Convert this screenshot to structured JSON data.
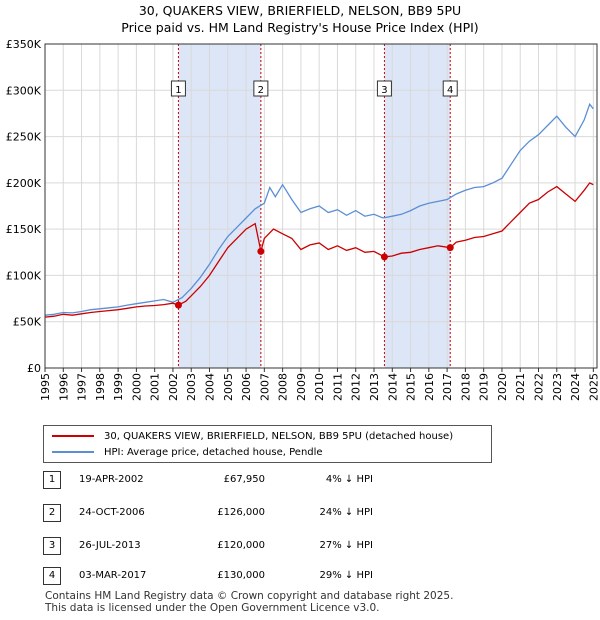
{
  "title_line1": "30, QUAKERS VIEW, BRIERFIELD, NELSON, BB9 5PU",
  "title_line2": "Price paid vs. HM Land Registry's House Price Index (HPI)",
  "colors": {
    "property": "#cc0000",
    "hpi": "#5b8fd4",
    "shade": "#dde6f7",
    "marker_line": "#cc0000",
    "grid": "#d9d9d9"
  },
  "chart_data": {
    "type": "line",
    "xlim": [
      1995,
      2025.2
    ],
    "ylim": [
      0,
      350000
    ],
    "y_ticks": [
      {
        "value": 0,
        "label": "£0"
      },
      {
        "value": 50000,
        "label": "£50K"
      },
      {
        "value": 100000,
        "label": "£100K"
      },
      {
        "value": 150000,
        "label": "£150K"
      },
      {
        "value": 200000,
        "label": "£200K"
      },
      {
        "value": 250000,
        "label": "£250K"
      },
      {
        "value": 300000,
        "label": "£300K"
      },
      {
        "value": 350000,
        "label": "£350K"
      }
    ],
    "x_ticks": [
      "1995",
      "1996",
      "1997",
      "1998",
      "1999",
      "2000",
      "2001",
      "2002",
      "2003",
      "2004",
      "2005",
      "2006",
      "2007",
      "2008",
      "2009",
      "2010",
      "2011",
      "2012",
      "2013",
      "2014",
      "2015",
      "2016",
      "2017",
      "2018",
      "2019",
      "2020",
      "2021",
      "2022",
      "2023",
      "2024",
      "2025"
    ],
    "shaded_ranges": [
      [
        2002.3,
        2006.81
      ],
      [
        2013.57,
        2017.17
      ]
    ],
    "series": [
      {
        "name": "30, QUAKERS VIEW, BRIERFIELD, NELSON, BB9 5PU (detached house)",
        "color": "#cc0000",
        "points": [
          [
            1995,
            55000
          ],
          [
            1995.5,
            56000
          ],
          [
            1996,
            58000
          ],
          [
            1996.5,
            57000
          ],
          [
            1997,
            58500
          ],
          [
            1997.5,
            60000
          ],
          [
            1998,
            61000
          ],
          [
            1998.5,
            62000
          ],
          [
            1999,
            63000
          ],
          [
            1999.5,
            64500
          ],
          [
            2000,
            66000
          ],
          [
            2000.5,
            67000
          ],
          [
            2001,
            67500
          ],
          [
            2001.5,
            68500
          ],
          [
            2002,
            70000
          ],
          [
            2002.3,
            67950
          ],
          [
            2002.7,
            72000
          ],
          [
            2003,
            78000
          ],
          [
            2003.5,
            88000
          ],
          [
            2004,
            100000
          ],
          [
            2004.5,
            115000
          ],
          [
            2005,
            130000
          ],
          [
            2005.5,
            140000
          ],
          [
            2006,
            150000
          ],
          [
            2006.5,
            156000
          ],
          [
            2006.81,
            126000
          ],
          [
            2007,
            140000
          ],
          [
            2007.5,
            150000
          ],
          [
            2008,
            145000
          ],
          [
            2008.5,
            140000
          ],
          [
            2009,
            128000
          ],
          [
            2009.5,
            133000
          ],
          [
            2010,
            135000
          ],
          [
            2010.5,
            128000
          ],
          [
            2011,
            132000
          ],
          [
            2011.5,
            127000
          ],
          [
            2012,
            130000
          ],
          [
            2012.5,
            125000
          ],
          [
            2013,
            126000
          ],
          [
            2013.57,
            120000
          ],
          [
            2014,
            121000
          ],
          [
            2014.5,
            124000
          ],
          [
            2015,
            125000
          ],
          [
            2015.5,
            128000
          ],
          [
            2016,
            130000
          ],
          [
            2016.5,
            132000
          ],
          [
            2017.17,
            130000
          ],
          [
            2017.5,
            136000
          ],
          [
            2018,
            138000
          ],
          [
            2018.5,
            141000
          ],
          [
            2019,
            142000
          ],
          [
            2019.5,
            145000
          ],
          [
            2020,
            148000
          ],
          [
            2020.5,
            158000
          ],
          [
            2021,
            168000
          ],
          [
            2021.5,
            178000
          ],
          [
            2022,
            182000
          ],
          [
            2022.5,
            190000
          ],
          [
            2023,
            196000
          ],
          [
            2023.5,
            188000
          ],
          [
            2024,
            180000
          ],
          [
            2024.5,
            192000
          ],
          [
            2024.8,
            200000
          ],
          [
            2025,
            198000
          ]
        ]
      },
      {
        "name": "HPI: Average price, detached house, Pendle",
        "color": "#5b8fd4",
        "points": [
          [
            1995,
            57000
          ],
          [
            1995.5,
            58000
          ],
          [
            1996,
            60000
          ],
          [
            1996.5,
            59500
          ],
          [
            1997,
            61000
          ],
          [
            1997.5,
            63000
          ],
          [
            1998,
            64000
          ],
          [
            1998.5,
            65000
          ],
          [
            1999,
            66000
          ],
          [
            1999.5,
            68000
          ],
          [
            2000,
            69500
          ],
          [
            2000.5,
            71000
          ],
          [
            2001,
            72500
          ],
          [
            2001.5,
            74000
          ],
          [
            2002,
            71000
          ],
          [
            2002.5,
            76000
          ],
          [
            2003,
            86000
          ],
          [
            2003.5,
            98000
          ],
          [
            2004,
            112000
          ],
          [
            2004.5,
            128000
          ],
          [
            2005,
            142000
          ],
          [
            2005.5,
            152000
          ],
          [
            2006,
            162000
          ],
          [
            2006.5,
            172000
          ],
          [
            2007,
            178000
          ],
          [
            2007.3,
            195000
          ],
          [
            2007.6,
            185000
          ],
          [
            2008,
            198000
          ],
          [
            2008.5,
            182000
          ],
          [
            2009,
            168000
          ],
          [
            2009.5,
            172000
          ],
          [
            2010,
            175000
          ],
          [
            2010.5,
            168000
          ],
          [
            2011,
            171000
          ],
          [
            2011.5,
            165000
          ],
          [
            2012,
            170000
          ],
          [
            2012.5,
            164000
          ],
          [
            2013,
            166000
          ],
          [
            2013.5,
            162000
          ],
          [
            2014,
            164000
          ],
          [
            2014.5,
            166000
          ],
          [
            2015,
            170000
          ],
          [
            2015.5,
            175000
          ],
          [
            2016,
            178000
          ],
          [
            2016.5,
            180000
          ],
          [
            2017,
            182000
          ],
          [
            2017.5,
            188000
          ],
          [
            2018,
            192000
          ],
          [
            2018.5,
            195000
          ],
          [
            2019,
            196000
          ],
          [
            2019.5,
            200000
          ],
          [
            2020,
            205000
          ],
          [
            2020.5,
            220000
          ],
          [
            2021,
            235000
          ],
          [
            2021.5,
            245000
          ],
          [
            2022,
            252000
          ],
          [
            2022.5,
            262000
          ],
          [
            2023,
            272000
          ],
          [
            2023.5,
            260000
          ],
          [
            2024,
            250000
          ],
          [
            2024.5,
            268000
          ],
          [
            2024.8,
            285000
          ],
          [
            2025,
            280000
          ]
        ]
      }
    ],
    "markers": [
      {
        "label": "1",
        "x": 2002.3,
        "y": 67950
      },
      {
        "label": "2",
        "x": 2006.81,
        "y": 126000
      },
      {
        "label": "3",
        "x": 2013.57,
        "y": 120000
      },
      {
        "label": "4",
        "x": 2017.17,
        "y": 130000
      }
    ]
  },
  "legend": {
    "property_label": "30, QUAKERS VIEW, BRIERFIELD, NELSON, BB9 5PU (detached house)",
    "hpi_label": "HPI: Average price, detached house, Pendle"
  },
  "sales": [
    {
      "num": "1",
      "date": "19-APR-2002",
      "price": "£67,950",
      "hpi": "4% ↓ HPI"
    },
    {
      "num": "2",
      "date": "24-OCT-2006",
      "price": "£126,000",
      "hpi": "24% ↓ HPI"
    },
    {
      "num": "3",
      "date": "26-JUL-2013",
      "price": "£120,000",
      "hpi": "27% ↓ HPI"
    },
    {
      "num": "4",
      "date": "03-MAR-2017",
      "price": "£130,000",
      "hpi": "29% ↓ HPI"
    }
  ],
  "footer_line1": "Contains HM Land Registry data © Crown copyright and database right 2025.",
  "footer_line2": "This data is licensed under the Open Government Licence v3.0."
}
